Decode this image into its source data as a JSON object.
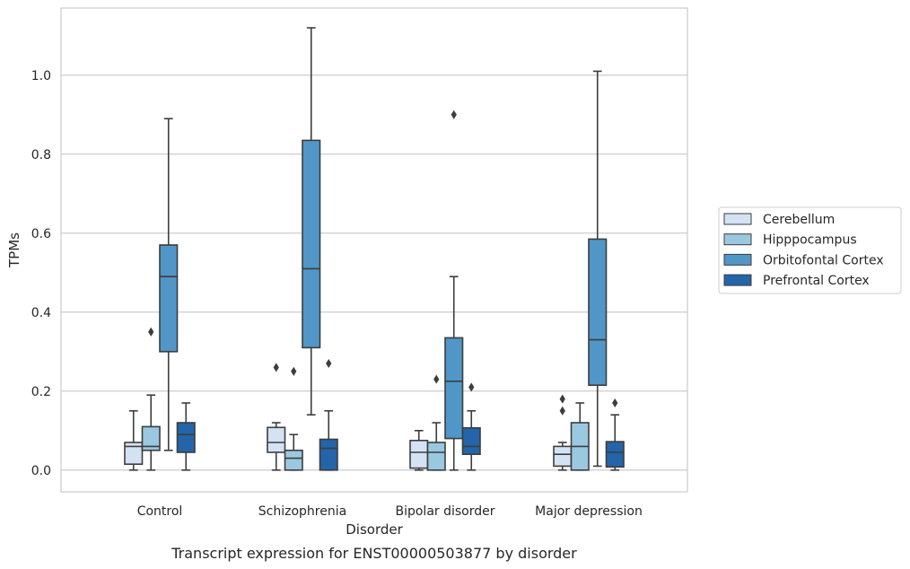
{
  "chart_data": {
    "type": "box",
    "title": "",
    "caption": "Transcript expression for ENST00000503877 by disorder",
    "xlabel": "Disorder",
    "ylabel": "TPMs",
    "ylim": [
      -0.055,
      1.17
    ],
    "yticks": [
      0.0,
      0.2,
      0.4,
      0.6,
      0.8,
      1.0
    ],
    "ytick_labels": [
      "0.0",
      "0.2",
      "0.4",
      "0.6",
      "0.8",
      "1.0"
    ],
    "grid": true,
    "legend_position": "right",
    "categories": [
      "Control",
      "Schizophrenia",
      "Bipolar disorder",
      "Major depression"
    ],
    "series": [
      {
        "name": "Cerebellum",
        "color": "#d4e3f3",
        "boxes": [
          {
            "whislo": 0.0,
            "q1": 0.015,
            "med": 0.06,
            "q3": 0.07,
            "whishi": 0.15,
            "fliers": []
          },
          {
            "whislo": 0.0,
            "q1": 0.045,
            "med": 0.07,
            "q3": 0.108,
            "whishi": 0.12,
            "fliers": [
              0.26
            ]
          },
          {
            "whislo": 0.0,
            "q1": 0.005,
            "med": 0.045,
            "q3": 0.075,
            "whishi": 0.1,
            "fliers": []
          },
          {
            "whislo": 0.0,
            "q1": 0.01,
            "med": 0.04,
            "q3": 0.06,
            "whishi": 0.07,
            "fliers": [
              0.15,
              0.18
            ]
          }
        ]
      },
      {
        "name": "Hipppocampus",
        "color": "#9ac8e0",
        "boxes": [
          {
            "whislo": 0.0,
            "q1": 0.05,
            "med": 0.06,
            "q3": 0.11,
            "whishi": 0.19,
            "fliers": [
              0.35
            ]
          },
          {
            "whislo": 0.0,
            "q1": 0.0,
            "med": 0.03,
            "q3": 0.05,
            "whishi": 0.09,
            "fliers": [
              0.25
            ]
          },
          {
            "whislo": 0.0,
            "q1": 0.0,
            "med": 0.045,
            "q3": 0.07,
            "whishi": 0.12,
            "fliers": [
              0.23
            ]
          },
          {
            "whislo": 0.0,
            "q1": 0.0,
            "med": 0.06,
            "q3": 0.12,
            "whishi": 0.17,
            "fliers": []
          }
        ]
      },
      {
        "name": "Orbitofontal Cortex",
        "color": "#5097c7",
        "boxes": [
          {
            "whislo": 0.05,
            "q1": 0.3,
            "med": 0.49,
            "q3": 0.57,
            "whishi": 0.89,
            "fliers": []
          },
          {
            "whislo": 0.14,
            "q1": 0.31,
            "med": 0.51,
            "q3": 0.835,
            "whishi": 1.12,
            "fliers": []
          },
          {
            "whislo": 0.0,
            "q1": 0.08,
            "med": 0.225,
            "q3": 0.335,
            "whishi": 0.49,
            "fliers": [
              0.9
            ]
          },
          {
            "whislo": 0.01,
            "q1": 0.215,
            "med": 0.33,
            "q3": 0.585,
            "whishi": 1.01,
            "fliers": []
          }
        ]
      },
      {
        "name": "Prefrontal Cortex",
        "color": "#2464a8",
        "boxes": [
          {
            "whislo": 0.0,
            "q1": 0.045,
            "med": 0.09,
            "q3": 0.12,
            "whishi": 0.17,
            "fliers": []
          },
          {
            "whislo": 0.0,
            "q1": 0.0,
            "med": 0.055,
            "q3": 0.078,
            "whishi": 0.15,
            "fliers": [
              0.27
            ]
          },
          {
            "whislo": 0.0,
            "q1": 0.04,
            "med": 0.06,
            "q3": 0.107,
            "whishi": 0.15,
            "fliers": [
              0.21
            ]
          },
          {
            "whislo": 0.0,
            "q1": 0.008,
            "med": 0.045,
            "q3": 0.072,
            "whishi": 0.14,
            "fliers": [
              0.17
            ]
          }
        ]
      }
    ]
  }
}
